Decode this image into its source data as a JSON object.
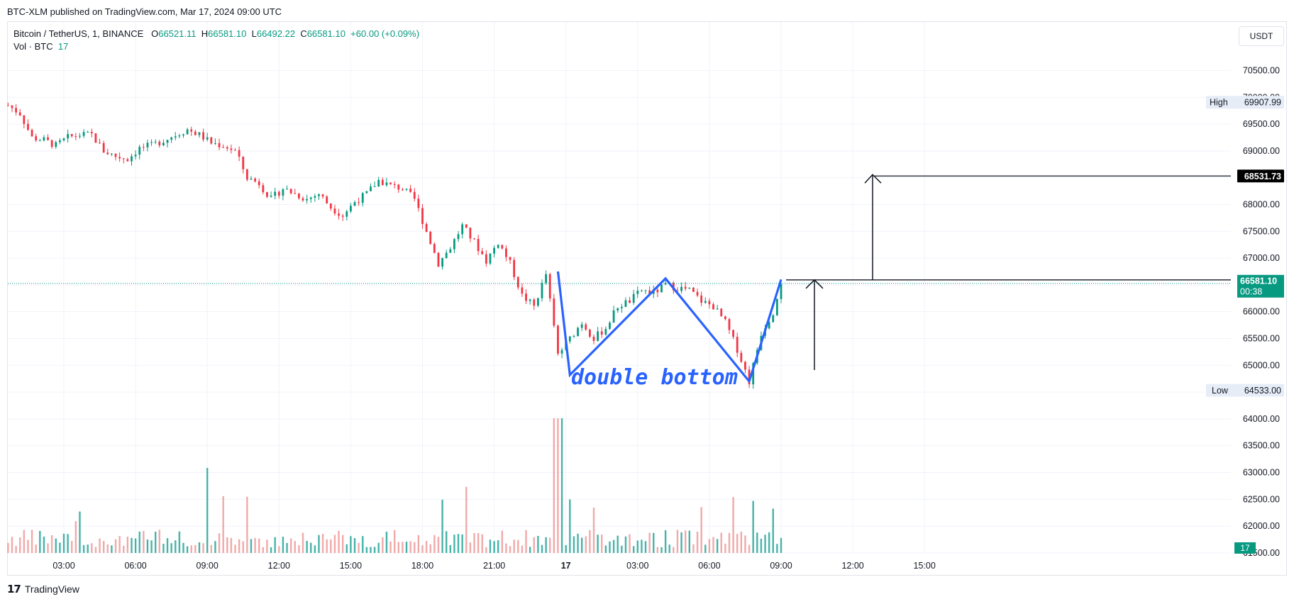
{
  "header": {
    "published": "BTC-XLM published on TradingView.com, Mar 17, 2024 09:00 UTC"
  },
  "legend": {
    "symbol": "Bitcoin / TetherUS, 1, BINANCE",
    "open_label": "O",
    "open": "66521.11",
    "high_label": "H",
    "high": "66581.10",
    "low_label": "L",
    "low": "66492.22",
    "close_label": "C",
    "close": "66581.10",
    "change": "+60.00 (+0.09%)",
    "vol_label": "Vol · BTC",
    "vol": "17"
  },
  "toolbar": {
    "currency": "USDT"
  },
  "price_axis": {
    "ticks": [
      "70500.00",
      "70000.00",
      "69500.00",
      "69000.00",
      "68500.00",
      "68000.00",
      "67500.00",
      "67000.00",
      "66500.00",
      "66000.00",
      "65500.00",
      "65000.00",
      "64500.00",
      "64000.00",
      "63500.00",
      "63000.00",
      "62500.00",
      "62000.00",
      "61500.00"
    ],
    "high_label": "High",
    "high_value": "69907.99",
    "low_label": "Low",
    "low_value": "64533.00",
    "target_value": "68531.73",
    "last_price": "66581.10",
    "countdown": "00:38",
    "volume_badge": "17"
  },
  "time_axis": {
    "ticks": [
      "03:00",
      "06:00",
      "09:00",
      "12:00",
      "15:00",
      "18:00",
      "21:00",
      "17",
      "03:00",
      "06:00",
      "09:00",
      "12:00",
      "15:00"
    ]
  },
  "annotation": {
    "pattern_label": "double bottom"
  },
  "colors": {
    "up": "#089981",
    "down": "#f23645",
    "pattern": "#2962ff",
    "volume_up": "#26a69a",
    "volume_down": "#ef9a9a"
  },
  "chart_data": {
    "type": "candlestick",
    "symbol": "Bitcoin / TetherUS",
    "interval": "1",
    "y_range": [
      61300,
      70800
    ],
    "x_range_hours": [
      "Mar 16 00:40",
      "Mar 17 17:50"
    ],
    "last_candle_time": "Mar 17 09:00",
    "session_high": 69907.99,
    "session_low": 64533.0,
    "last_price": 66581.1,
    "target_price": 68531.73,
    "price_path": [
      {
        "t": "00:40",
        "p": 69850
      },
      {
        "t": "01:10",
        "p": 69700
      },
      {
        "t": "01:40",
        "p": 69250
      },
      {
        "t": "02:10",
        "p": 69200
      },
      {
        "t": "02:40",
        "p": 69100
      },
      {
        "t": "03:10",
        "p": 69250
      },
      {
        "t": "03:40",
        "p": 69300
      },
      {
        "t": "04:10",
        "p": 69300
      },
      {
        "t": "04:40",
        "p": 69000
      },
      {
        "t": "05:10",
        "p": 68900
      },
      {
        "t": "05:40",
        "p": 68850
      },
      {
        "t": "06:10",
        "p": 69050
      },
      {
        "t": "06:40",
        "p": 69100
      },
      {
        "t": "07:10",
        "p": 69200
      },
      {
        "t": "07:40",
        "p": 69300
      },
      {
        "t": "08:10",
        "p": 69400
      },
      {
        "t": "08:40",
        "p": 69300
      },
      {
        "t": "09:10",
        "p": 69150
      },
      {
        "t": "09:40",
        "p": 69100
      },
      {
        "t": "10:10",
        "p": 69000
      },
      {
        "t": "10:40",
        "p": 68500
      },
      {
        "t": "11:10",
        "p": 68400
      },
      {
        "t": "11:40",
        "p": 68100
      },
      {
        "t": "12:10",
        "p": 68300
      },
      {
        "t": "12:40",
        "p": 68200
      },
      {
        "t": "13:10",
        "p": 68100
      },
      {
        "t": "13:40",
        "p": 68200
      },
      {
        "t": "14:10",
        "p": 67950
      },
      {
        "t": "14:40",
        "p": 67800
      },
      {
        "t": "15:10",
        "p": 68050
      },
      {
        "t": "15:40",
        "p": 68200
      },
      {
        "t": "16:10",
        "p": 68450
      },
      {
        "t": "16:40",
        "p": 68350
      },
      {
        "t": "17:10",
        "p": 68300
      },
      {
        "t": "17:40",
        "p": 68100
      },
      {
        "t": "18:10",
        "p": 67500
      },
      {
        "t": "18:40",
        "p": 66900
      },
      {
        "t": "19:10",
        "p": 67200
      },
      {
        "t": "19:40",
        "p": 67600
      },
      {
        "t": "20:10",
        "p": 67300
      },
      {
        "t": "20:40",
        "p": 66950
      },
      {
        "t": "21:10",
        "p": 67300
      },
      {
        "t": "21:40",
        "p": 66900
      },
      {
        "t": "22:10",
        "p": 66300
      },
      {
        "t": "22:40",
        "p": 66100
      },
      {
        "t": "23:10",
        "p": 66700
      },
      {
        "t": "23:40",
        "p": 65200
      },
      {
        "t": "00:10",
        "p": 65500
      },
      {
        "t": "00:40",
        "p": 65800
      },
      {
        "t": "01:10",
        "p": 65500
      },
      {
        "t": "01:40",
        "p": 65700
      },
      {
        "t": "02:10",
        "p": 66100
      },
      {
        "t": "02:40",
        "p": 66200
      },
      {
        "t": "03:10",
        "p": 66400
      },
      {
        "t": "03:40",
        "p": 66350
      },
      {
        "t": "04:10",
        "p": 66500
      },
      {
        "t": "04:40",
        "p": 66450
      },
      {
        "t": "05:10",
        "p": 66400
      },
      {
        "t": "05:40",
        "p": 66200
      },
      {
        "t": "06:10",
        "p": 66100
      },
      {
        "t": "06:40",
        "p": 65800
      },
      {
        "t": "07:10",
        "p": 65300
      },
      {
        "t": "07:40",
        "p": 64700
      },
      {
        "t": "08:10",
        "p": 65600
      },
      {
        "t": "08:40",
        "p": 66000
      },
      {
        "t": "09:00",
        "p": 66581
      }
    ],
    "pattern": {
      "name": "double bottom",
      "points": [
        {
          "t": "23:40",
          "p": 66750
        },
        {
          "t": "00:10",
          "p": 64820
        },
        {
          "t": "04:10",
          "p": 66620
        },
        {
          "t": "07:40",
          "p": 64700
        },
        {
          "t": "09:00",
          "p": 66600
        }
      ],
      "neckline": 66620,
      "target": 68531.73
    }
  }
}
